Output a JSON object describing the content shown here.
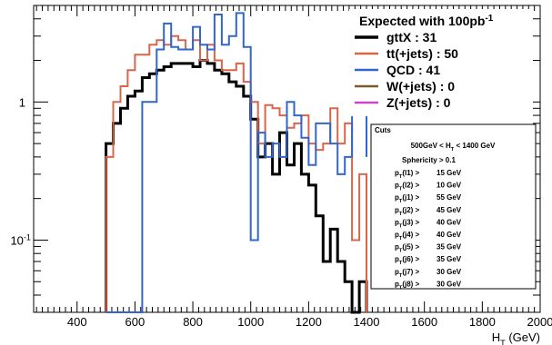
{
  "chart_data": {
    "type": "line",
    "xlabel": "H_T (GeV)",
    "xlabel_main": "H",
    "xlabel_sub": "T",
    "xlabel_unit": " (GeV)",
    "ylabel": "",
    "xlim": [
      250,
      2000
    ],
    "ylim": [
      0.03,
      5
    ],
    "yscale": "log",
    "grid": false,
    "x_ticks": [
      400,
      600,
      800,
      1000,
      1200,
      1400,
      1600,
      1800,
      2000
    ],
    "x_tick_labels": [
      "400",
      "600",
      "800",
      "1000",
      "1200",
      "1400",
      "1600",
      "1800",
      "2000"
    ],
    "y_ticks": [
      0.1,
      1
    ],
    "y_tick_base": "10",
    "y_tick_exp": "-1",
    "y_tick_one": "1",
    "bin_edges": [
      500,
      525,
      550,
      575,
      600,
      625,
      650,
      675,
      700,
      725,
      750,
      775,
      800,
      825,
      850,
      875,
      900,
      925,
      950,
      975,
      1000,
      1025,
      1050,
      1075,
      1100,
      1125,
      1150,
      1175,
      1200,
      1225,
      1250,
      1275,
      1300,
      1325,
      1350,
      1375,
      1400
    ],
    "series": [
      {
        "name": "gttX",
        "color": "#000000",
        "values": [
          0.5,
          0.7,
          0.9,
          1.1,
          1.2,
          1.5,
          1.6,
          1.7,
          1.8,
          1.9,
          1.9,
          1.9,
          1.8,
          2.0,
          1.9,
          1.7,
          1.6,
          1.4,
          1.3,
          1.1,
          0.75,
          0.4,
          0.5,
          0.3,
          0.6,
          0.35,
          0.5,
          0.3,
          0.25,
          0.15,
          0.07,
          0.12,
          0.07,
          0.05,
          0.02,
          0.05,
          null
        ]
      },
      {
        "name": "tt(+jets)",
        "color": "#d9664a",
        "values": [
          0.4,
          1.0,
          1.3,
          1.7,
          2.2,
          2.2,
          2.6,
          2.8,
          2.6,
          3.0,
          2.8,
          2.4,
          2.8,
          2.0,
          2.6,
          2.0,
          1.7,
          1.7,
          1.9,
          1.4,
          1.0,
          0.5,
          0.95,
          0.9,
          0.8,
          0.65,
          0.7,
          0.8,
          0.5,
          0.45,
          0.5,
          0.9,
          0.5,
          0.7,
          0.1,
          0.3,
          null
        ]
      },
      {
        "name": "QCD",
        "color": "#3366cc",
        "values": [
          null,
          null,
          null,
          null,
          null,
          1.0,
          1.0,
          2.4,
          3.7,
          2.5,
          2.4,
          2.4,
          3.5,
          2.6,
          2.4,
          4.3,
          2.6,
          3.0,
          4.4,
          2.5,
          0.1,
          0.6,
          0.4,
          0.5,
          0.4,
          1.0,
          0.8,
          0.55,
          0.35,
          0.7,
          0.7,
          0.5,
          0.3,
          0.4,
          0.85,
          0.85,
          0.4
        ]
      },
      {
        "name": "W(+jets)",
        "color": "#7a5a2e",
        "values": []
      },
      {
        "name": "Z(+jets)",
        "color": "#cc44cc",
        "values": []
      }
    ],
    "legend": {
      "position": "top-right",
      "header": "Expected with 100pb",
      "header_sup": "-1",
      "entries": [
        {
          "label": "gttX :  31",
          "color": "#000000"
        },
        {
          "label": "tt(+jets) :  50",
          "color": "#d9664a"
        },
        {
          "label": "QCD :  41",
          "color": "#3366cc"
        },
        {
          "label": "W(+jets) :   0",
          "color": "#7a5a2e"
        },
        {
          "label": "Z(+jets) :   0",
          "color": "#cc44cc"
        }
      ]
    },
    "cuts": {
      "title": "Cuts",
      "ht_cut": "500GeV < H_T < 1400 GeV",
      "sphericity": "Sphericity > 0.1",
      "lines": [
        {
          "label": "p_T(l1) >",
          "value": "15 GeV"
        },
        {
          "label": "p_T(l2) >",
          "value": "10 GeV"
        },
        {
          "label": "p_T(j1) >",
          "value": "55 GeV"
        },
        {
          "label": "p_T(j2) >",
          "value": "45 GeV"
        },
        {
          "label": "p_T(j3) >",
          "value": "40 GeV"
        },
        {
          "label": "p_T(j4) >",
          "value": "40 GeV"
        },
        {
          "label": "p_T(j5) >",
          "value": "35 GeV"
        },
        {
          "label": "p_T(j6) >",
          "value": "35 GeV"
        },
        {
          "label": "p_T(j7) >",
          "value": "30 GeV"
        },
        {
          "label": "p_T(j8) >",
          "value": "30 GeV"
        }
      ]
    }
  }
}
